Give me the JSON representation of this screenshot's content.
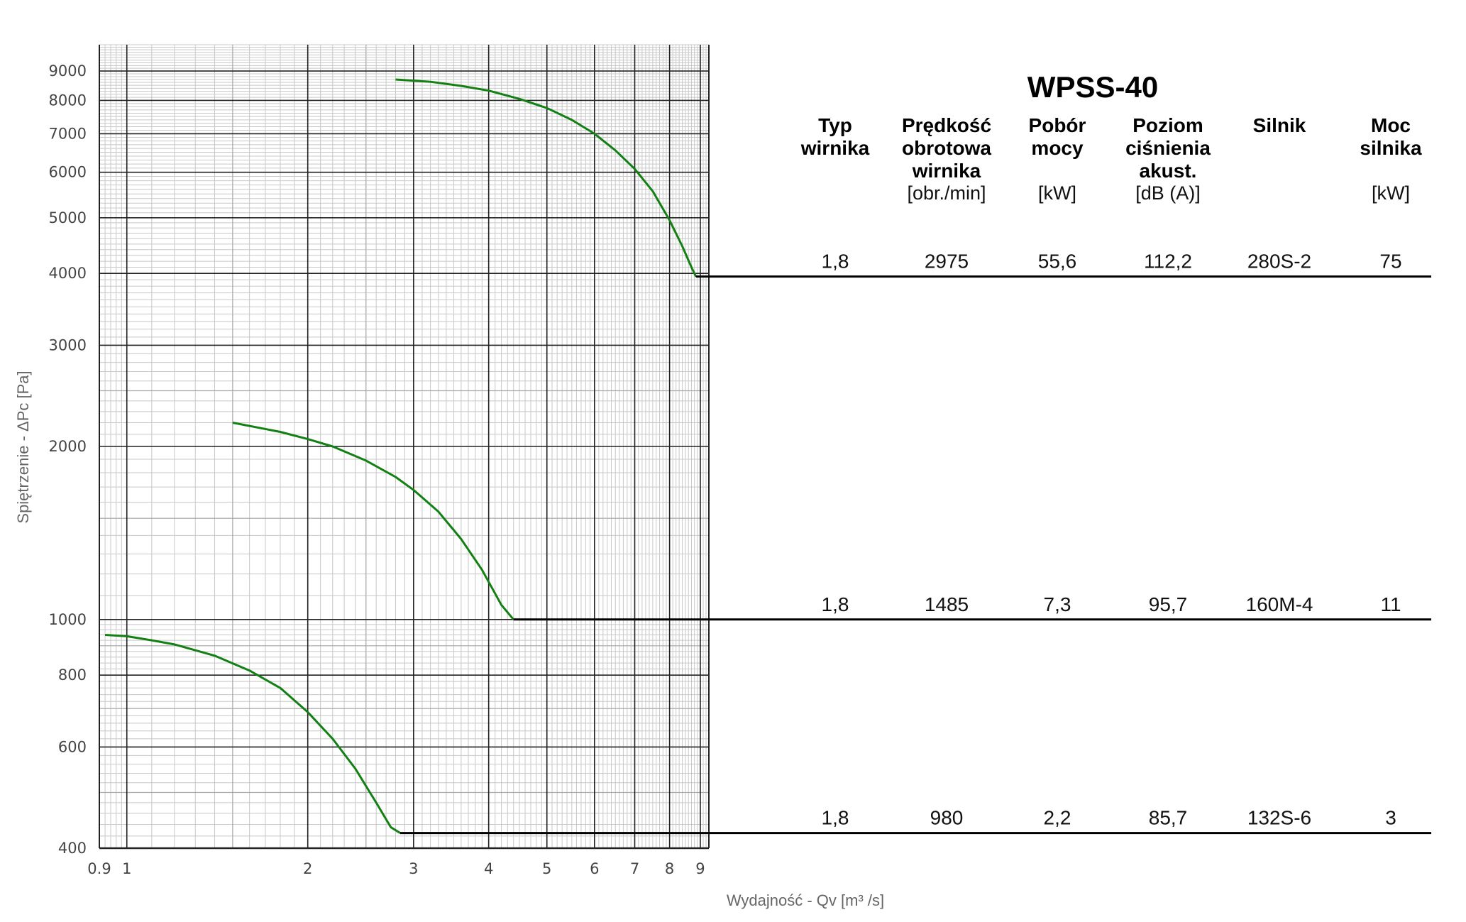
{
  "chart_data": {
    "type": "line",
    "title": "WPSS-40",
    "xlabel": "Wydajność - Qv [m³ /s]",
    "ylabel": "Spiętrzenie - ΔPc [Pa]",
    "x_scale": "log",
    "y_scale": "log",
    "xlim": [
      0.9,
      9.3
    ],
    "ylim": [
      400,
      10000
    ],
    "x_ticks": [
      "0.9",
      "1",
      "2",
      "3",
      "4",
      "5",
      "6",
      "7",
      "8",
      "9"
    ],
    "y_ticks": [
      "400",
      "600",
      "800",
      "1000",
      "2000",
      "3000",
      "4000",
      "5000",
      "6000",
      "7000",
      "8000",
      "9000"
    ],
    "grid": true,
    "series_color": "#138013",
    "series": [
      {
        "x": [
          2.8,
          3.2,
          3.6,
          4.0,
          4.5,
          5.0,
          5.5,
          6.0,
          6.5,
          7.0,
          7.5,
          8.0,
          8.4,
          8.7,
          8.85
        ],
        "y": [
          8700,
          8620,
          8480,
          8320,
          8050,
          7760,
          7400,
          7000,
          6550,
          6080,
          5560,
          4950,
          4460,
          4100,
          3950
        ]
      },
      {
        "x": [
          1.5,
          1.8,
          2.0,
          2.2,
          2.5,
          2.8,
          3.0,
          3.3,
          3.6,
          3.9,
          4.2,
          4.4
        ],
        "y": [
          2200,
          2120,
          2060,
          2000,
          1890,
          1770,
          1680,
          1540,
          1380,
          1220,
          1060,
          1000
        ]
      },
      {
        "x": [
          0.92,
          1.0,
          1.1,
          1.2,
          1.4,
          1.6,
          1.8,
          2.0,
          2.2,
          2.4,
          2.6,
          2.75,
          2.85
        ],
        "y": [
          940,
          935,
          920,
          905,
          865,
          815,
          760,
          690,
          620,
          550,
          480,
          435,
          425
        ]
      }
    ],
    "table": {
      "headers": [
        [
          "Typ",
          "wirnika"
        ],
        [
          "Prędkość",
          "obrotowa",
          "wirnika"
        ],
        [
          "Pobór",
          "mocy"
        ],
        [
          "Poziom",
          "ciśnienia",
          "akust."
        ],
        [
          "Silnik"
        ],
        [
          "Moc",
          "silnika"
        ]
      ],
      "units": [
        "",
        "[obr./min]",
        "[kW]",
        "[dB (A)]",
        "",
        "[kW]"
      ],
      "rows": [
        [
          "1,8",
          "2975",
          "55,6",
          "112,2",
          "280S-2",
          "75"
        ],
        [
          "1,8",
          "1485",
          "7,3",
          "95,7",
          "160M-4",
          "11"
        ],
        [
          "1,8",
          "980",
          "2,2",
          "85,7",
          "132S-6",
          "3"
        ]
      ]
    }
  }
}
